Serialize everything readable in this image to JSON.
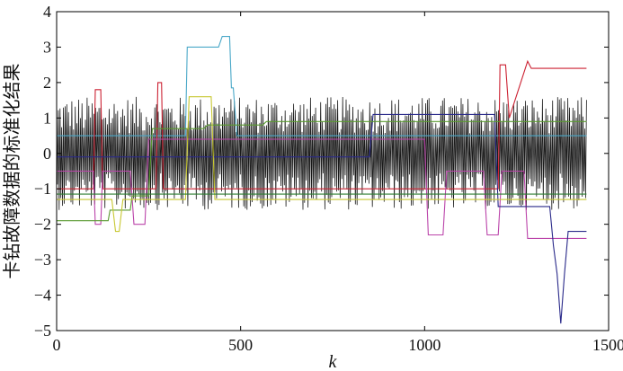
{
  "chart_data": {
    "type": "line",
    "title": "",
    "xlabel": "k",
    "ylabel": "卡钻故障数据的标准化结果",
    "xlim": [
      0,
      1500
    ],
    "ylim": [
      -5,
      4
    ],
    "xticks": [
      0,
      500,
      1000,
      1500
    ],
    "yticks": [
      4,
      3,
      2,
      1,
      0,
      -1,
      -2,
      -3,
      -4,
      -5
    ],
    "grid": false,
    "series": [
      {
        "color": "#1a1a1a",
        "style": "oscillating",
        "x": [
          0,
          1440
        ],
        "range": [
          -1.6,
          1.6
        ]
      },
      {
        "color": "#4aa8c8",
        "x": [
          0,
          350,
          355,
          440,
          450,
          470,
          475,
          480,
          490,
          1440
        ],
        "y": [
          0.5,
          0.5,
          3.0,
          3.0,
          3.3,
          3.3,
          1.85,
          1.85,
          0.5,
          0.5
        ]
      },
      {
        "color": "#cc2233",
        "x": [
          0,
          100,
          105,
          120,
          125,
          270,
          275,
          285,
          290,
          1200,
          1205,
          1220,
          1230,
          1280,
          1290,
          1440
        ],
        "y": [
          -1.0,
          -1.0,
          1.8,
          1.8,
          -1.0,
          -1.0,
          2.0,
          2.0,
          -1.0,
          -1.0,
          2.5,
          2.5,
          1.0,
          2.6,
          2.4,
          2.4
        ]
      },
      {
        "color": "#bb44aa",
        "x": [
          0,
          100,
          105,
          120,
          125,
          200,
          210,
          240,
          250,
          1000,
          1010,
          1050,
          1060,
          1160,
          1170,
          1200,
          1210,
          1270,
          1280,
          1440
        ],
        "y": [
          -0.5,
          -0.5,
          -2.0,
          -2.0,
          -0.5,
          -0.5,
          -2.0,
          -2.0,
          0.4,
          0.4,
          -2.3,
          -2.3,
          -0.5,
          -0.5,
          -2.3,
          -2.3,
          -0.5,
          -0.5,
          -2.4,
          -2.4
        ]
      },
      {
        "color": "#2a2a8a",
        "x": [
          0,
          850,
          860,
          1190,
          1200,
          1340,
          1350,
          1360,
          1370,
          1380,
          1390,
          1440
        ],
        "y": [
          -0.1,
          -0.1,
          1.1,
          1.1,
          -1.5,
          -1.5,
          -2.6,
          -3.4,
          -4.8,
          -3.4,
          -2.2,
          -2.2
        ]
      },
      {
        "color": "#5a9a30",
        "x": [
          0,
          140,
          145,
          200,
          205,
          250,
          260,
          400,
          410,
          560,
          570,
          1440
        ],
        "y": [
          -1.9,
          -1.9,
          -1.6,
          -1.6,
          -1.2,
          -1.2,
          0.7,
          0.7,
          0.8,
          0.8,
          0.9,
          0.9
        ]
      },
      {
        "color": "#c8c832",
        "x": [
          0,
          150,
          160,
          170,
          180,
          350,
          360,
          420,
          430,
          1440
        ],
        "y": [
          -1.3,
          -1.3,
          -2.2,
          -2.2,
          -1.3,
          -1.3,
          1.6,
          1.6,
          -1.3,
          -1.3
        ]
      },
      {
        "color": "#2e7d32",
        "x": [
          0,
          1440
        ],
        "y": [
          -1.15,
          -1.15
        ]
      }
    ]
  }
}
